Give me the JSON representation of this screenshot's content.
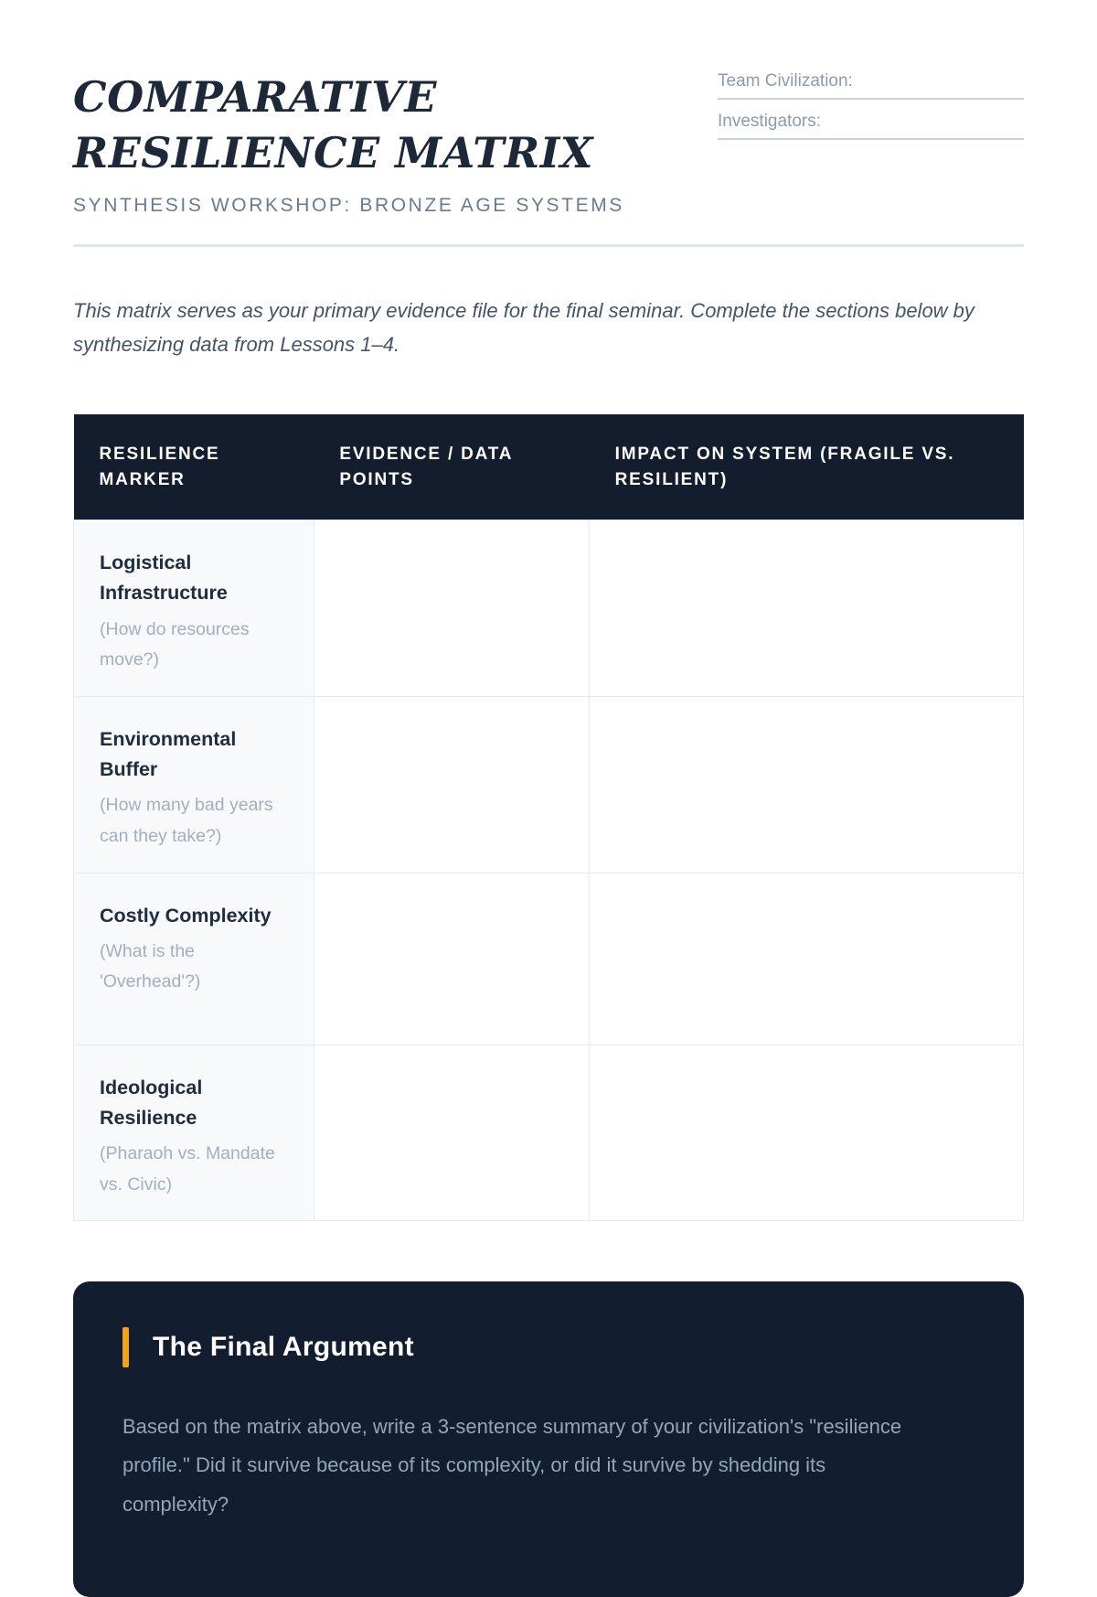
{
  "header": {
    "title": "COMPARATIVE RESILIENCE MATRIX",
    "subtitle": "SYNTHESIS WORKSHOP: BRONZE AGE SYSTEMS",
    "fields": [
      {
        "label": "Team Civilization:",
        "value": ""
      },
      {
        "label": "Investigators:",
        "value": ""
      }
    ]
  },
  "intro": "This matrix serves as your primary evidence file for the final seminar. Complete the sections below by synthesizing data from Lessons 1–4.",
  "table": {
    "columns": [
      "RESILIENCE MARKER",
      "EVIDENCE / DATA POINTS",
      "IMPACT ON SYSTEM (FRAGILE VS. RESILIENT)"
    ],
    "rows": [
      {
        "marker": "Logistical Infrastructure",
        "hint": "(How do resources move?)",
        "evidence": "",
        "impact": ""
      },
      {
        "marker": "Environmental Buffer",
        "hint": "(How many bad years can they take?)",
        "evidence": "",
        "impact": ""
      },
      {
        "marker": "Costly Complexity",
        "hint": "(What is the 'Overhead'?)",
        "evidence": "",
        "impact": ""
      },
      {
        "marker": "Ideological Resilience",
        "hint": "(Pharaoh vs. Mandate vs. Civic)",
        "evidence": "",
        "impact": ""
      }
    ]
  },
  "final_argument": {
    "heading": "The Final Argument",
    "body": "Based on the matrix above, write a 3-sentence summary of your civilization's \"resilience profile.\" Did it survive because of its complexity, or did it survive by shedding its complexity?"
  },
  "colors": {
    "accent_orange": "#f2a31d",
    "table_header_bg": "#131d2e",
    "card_bg": "#131d30",
    "title_navy": "#1d2838",
    "muted_slate": "#8b9bb0",
    "hint_gray": "#a3aebf"
  }
}
